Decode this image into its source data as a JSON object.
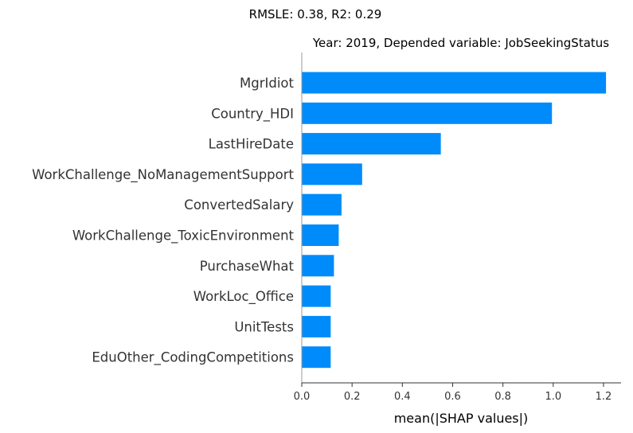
{
  "chart_data": {
    "type": "bar",
    "orientation": "horizontal",
    "suptitle": "RMSLE: 0.38, R2: 0.29",
    "title": "Year: 2019, Depended variable: JobSeekingStatus",
    "xlabel": "mean(|SHAP values|)",
    "ylabel": "",
    "categories": [
      "MgrIdiot",
      "Country_HDI",
      "LastHireDate",
      "WorkChallenge_NoManagementSupport",
      "ConvertedSalary",
      "WorkChallenge_ToxicEnvironment",
      "PurchaseWhat",
      "WorkLoc_Office",
      "UnitTests",
      "EduOther_CodingCompetitions"
    ],
    "values": [
      1.21,
      0.995,
      0.553,
      0.24,
      0.158,
      0.147,
      0.128,
      0.115,
      0.115,
      0.115
    ],
    "xlim": [
      0,
      1.27
    ],
    "xticks": [
      0.0,
      0.2,
      0.4,
      0.6,
      0.8,
      1.0,
      1.2
    ],
    "xtick_labels": [
      "0.0",
      "0.2",
      "0.4",
      "0.6",
      "0.8",
      "1.0",
      "1.2"
    ],
    "bar_color": "#008bfb",
    "axis_color": "#333333",
    "grid": false,
    "legend": "none"
  }
}
